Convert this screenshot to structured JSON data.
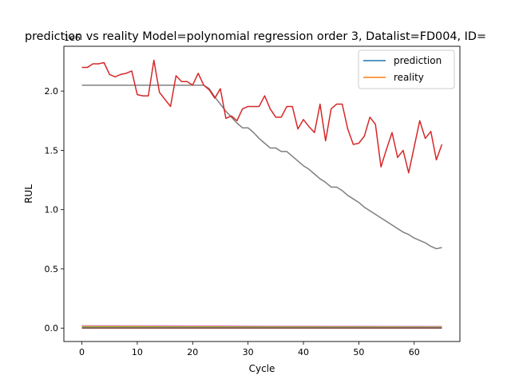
{
  "chart_data": {
    "type": "line",
    "title": "prediction vs reality Model=polynomial regression order 3, Datalist=FD004, ID=",
    "xlabel": "Cycle",
    "ylabel": "RUL",
    "y_offset_label": "1e6",
    "xlim": [
      -3.25,
      68.25
    ],
    "ylim": [
      -0.113,
      2.378
    ],
    "x_ticks": [
      0,
      10,
      20,
      30,
      40,
      50,
      60
    ],
    "x_tick_labels": [
      "0",
      "10",
      "20",
      "30",
      "40",
      "50",
      "60"
    ],
    "y_ticks": [
      0.0,
      0.5,
      1.0,
      1.5,
      2.0
    ],
    "y_tick_labels": [
      "0.0",
      "0.5",
      "1.0",
      "1.5",
      "2.0"
    ],
    "grid": false,
    "legend_position": "top-right",
    "legend": [
      {
        "label": "prediction",
        "color": "#1f77b4"
      },
      {
        "label": "reality",
        "color": "#ff7f0e"
      }
    ],
    "series": [
      {
        "color": "#7f7f7f",
        "x": [
          0,
          1,
          2,
          3,
          4,
          5,
          6,
          7,
          8,
          9,
          10,
          11,
          12,
          13,
          14,
          15,
          16,
          17,
          18,
          19,
          20,
          21,
          22,
          23,
          24,
          25,
          26,
          27,
          28,
          29,
          30,
          31,
          32,
          33,
          34,
          35,
          36,
          37,
          38,
          39,
          40,
          41,
          42,
          43,
          44,
          45,
          46,
          47,
          48,
          49,
          50,
          51,
          52,
          53,
          54,
          55,
          56,
          57,
          58,
          59,
          60,
          61,
          62,
          63,
          64,
          65
        ],
        "y": [
          2.05,
          2.05,
          2.05,
          2.05,
          2.05,
          2.05,
          2.05,
          2.05,
          2.05,
          2.05,
          2.05,
          2.05,
          2.05,
          2.05,
          2.05,
          2.05,
          2.05,
          2.05,
          2.05,
          2.05,
          2.05,
          2.05,
          2.05,
          2.02,
          1.95,
          1.89,
          1.83,
          1.78,
          1.73,
          1.69,
          1.69,
          1.65,
          1.6,
          1.56,
          1.52,
          1.52,
          1.49,
          1.49,
          1.45,
          1.41,
          1.37,
          1.34,
          1.3,
          1.26,
          1.23,
          1.19,
          1.19,
          1.16,
          1.12,
          1.09,
          1.06,
          1.02,
          0.99,
          0.96,
          0.93,
          0.9,
          0.87,
          0.84,
          0.81,
          0.79,
          0.76,
          0.74,
          0.72,
          0.69,
          0.67,
          0.68
        ]
      },
      {
        "color": "#d62728",
        "x": [
          0,
          1,
          2,
          3,
          4,
          5,
          6,
          7,
          8,
          9,
          10,
          11,
          12,
          13,
          14,
          15,
          16,
          17,
          18,
          19,
          20,
          21,
          22,
          23,
          24,
          25,
          26,
          27,
          28,
          29,
          30,
          31,
          32,
          33,
          34,
          35,
          36,
          37,
          38,
          39,
          40,
          41,
          42,
          43,
          44,
          45,
          46,
          47,
          48,
          49,
          50,
          51,
          52,
          53,
          54,
          55,
          56,
          57,
          58,
          59,
          60,
          61,
          62,
          63,
          64,
          65
        ],
        "y": [
          2.2,
          2.2,
          2.23,
          2.23,
          2.24,
          2.14,
          2.12,
          2.14,
          2.15,
          2.17,
          1.97,
          1.96,
          1.96,
          2.26,
          1.99,
          1.93,
          1.87,
          2.13,
          2.08,
          2.08,
          2.05,
          2.15,
          2.05,
          2.01,
          1.94,
          2.02,
          1.77,
          1.79,
          1.75,
          1.85,
          1.87,
          1.87,
          1.87,
          1.96,
          1.85,
          1.78,
          1.78,
          1.87,
          1.87,
          1.68,
          1.76,
          1.7,
          1.65,
          1.89,
          1.58,
          1.85,
          1.89,
          1.89,
          1.68,
          1.55,
          1.56,
          1.62,
          1.78,
          1.72,
          1.36,
          1.51,
          1.65,
          1.44,
          1.5,
          1.31,
          1.53,
          1.75,
          1.6,
          1.66,
          1.42,
          1.55
        ]
      },
      {
        "color": "#e377c2",
        "x": [
          0,
          5,
          10,
          15,
          20,
          25,
          30,
          35,
          40,
          45,
          50,
          55,
          60,
          65
        ],
        "y": [
          0.02,
          0.02,
          0.019,
          0.019,
          0.018,
          0.018,
          0.017,
          0.016,
          0.016,
          0.015,
          0.015,
          0.014,
          0.014,
          0.013
        ]
      },
      {
        "color": "#bcbd22",
        "x": [
          0,
          5,
          10,
          15,
          20,
          25,
          30,
          35,
          40,
          45,
          50,
          55,
          60,
          65
        ],
        "y": [
          0.012,
          0.012,
          0.012,
          0.011,
          0.011,
          0.011,
          0.01,
          0.01,
          0.01,
          0.009,
          0.009,
          0.009,
          0.008,
          0.008
        ]
      },
      {
        "color": "#2ca02c",
        "x": [
          0,
          5,
          10,
          15,
          20,
          25,
          30,
          35,
          40,
          45,
          50,
          55,
          60,
          65
        ],
        "y": [
          0.005,
          0.005,
          0.005,
          0.005,
          0.005,
          0.005,
          0.005,
          0.005,
          0.005,
          0.005,
          0.005,
          0.005,
          0.005,
          0.005
        ]
      },
      {
        "color": "#9467bd",
        "x": [
          0,
          5,
          10,
          15,
          20,
          25,
          30,
          35,
          40,
          45,
          50,
          55,
          60,
          65
        ],
        "y": [
          0.002,
          0.002,
          0.002,
          0.002,
          0.002,
          0.002,
          0.002,
          0.002,
          0.002,
          0.002,
          0.002,
          0.002,
          0.002,
          0.002
        ]
      },
      {
        "color": "#8c564b",
        "x": [
          0,
          5,
          10,
          15,
          20,
          25,
          30,
          35,
          40,
          45,
          50,
          55,
          60,
          65
        ],
        "y": [
          0.0,
          0.0,
          0.0,
          0.0,
          0.0,
          0.0,
          0.0,
          0.0,
          0.0,
          0.0,
          0.0,
          0.0,
          0.0,
          0.0
        ]
      }
    ]
  }
}
